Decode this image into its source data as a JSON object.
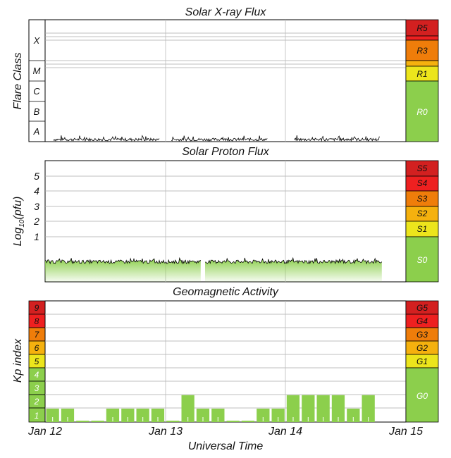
{
  "chart_data": [
    {
      "type": "line",
      "title": "Solar X-ray Flux",
      "ylabel": "Flare Class",
      "y_tick_labels": [
        "A",
        "B",
        "C",
        "M",
        "X"
      ],
      "scale_labels": [
        "R5",
        "R3",
        "R1",
        "R0"
      ],
      "series": [
        {
          "approx_level": "A",
          "segments": [
            {
              "start_day": 0.07,
              "end_day": 0.95
            },
            {
              "start_day": 1.05,
              "end_day": 1.85
            },
            {
              "start_day": 2.07,
              "end_day": 2.78
            }
          ]
        }
      ],
      "colors": {
        "R5": "#d32020",
        "R3": "#ef7d0a",
        "R1": "#ece51c",
        "R0": "#8ccf4c"
      }
    },
    {
      "type": "area",
      "title": "Solar Proton Flux",
      "ylabel": "Log10(pfu)",
      "y_ticks": [
        1,
        2,
        3,
        4,
        5
      ],
      "scale_labels": [
        "S5",
        "S4",
        "S3",
        "S2",
        "S1",
        "S0"
      ],
      "series": [
        {
          "approx_value": -0.5,
          "segments": [
            {
              "start_day": 0.0,
              "end_day": 1.3
            },
            {
              "start_day": 1.33,
              "end_day": 2.8
            }
          ]
        }
      ],
      "colors": {
        "S5": "#d32020",
        "S4": "#ee2020",
        "S3": "#ef7d0a",
        "S2": "#f5b10e",
        "S1": "#ece51c",
        "S0": "#8ccf4c",
        "fill": "#8ccf4c"
      }
    },
    {
      "type": "bar",
      "title": "Geomagnetic Activity",
      "ylabel": "Kp index",
      "xlabel": "Universal Time",
      "y_tick_labels": [
        "1",
        "2",
        "3",
        "4",
        "5",
        "6",
        "7",
        "8",
        "9"
      ],
      "x_tick_labels": [
        "Jan 12",
        "Jan 13",
        "Jan 14",
        "Jan 15"
      ],
      "scale_labels": [
        "G5",
        "G4",
        "G3",
        "G2",
        "G1",
        "G0"
      ],
      "bin_hours": 3,
      "bins": [
        {
          "start_day": 0.0,
          "values": [
            1,
            1,
            0.1,
            0.1,
            1,
            1,
            1,
            1
          ]
        },
        {
          "start_day": 1.0,
          "values": [
            0.1,
            2,
            1,
            1,
            0.1,
            0.1,
            1,
            1
          ]
        },
        {
          "start_day": 2.0,
          "values": [
            2,
            2,
            2,
            2,
            1,
            2
          ]
        }
      ],
      "ylim": [
        0,
        9
      ],
      "colors": {
        "bar": "#8ccf4c",
        "1-4": "#8ccf4c",
        "5": "#ece51c",
        "6": "#f5b10e",
        "7": "#ef7d0a",
        "8": "#ee2020",
        "9": "#d32020",
        "G5": "#d32020",
        "G4": "#ee2020",
        "G3": "#ef7d0a",
        "G2": "#f5b10e",
        "G1": "#ece51c",
        "G0": "#8ccf4c"
      }
    }
  ]
}
